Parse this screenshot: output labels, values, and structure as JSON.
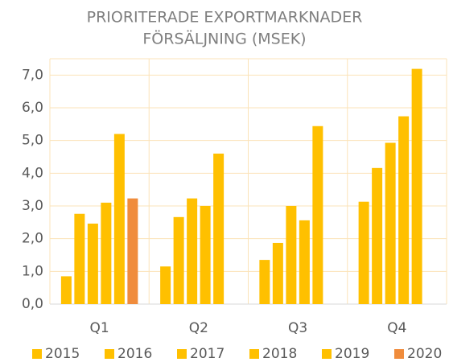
{
  "chart_data": {
    "type": "bar",
    "title": "PRIORITERADE EXPORTMARKNADER",
    "subtitle": "FÖRSÄLJNING (MSEK)",
    "categories": [
      "Q1",
      "Q2",
      "Q3",
      "Q4"
    ],
    "series": [
      {
        "name": "2015",
        "color": "#FFC000",
        "values": [
          0.85,
          1.15,
          1.35,
          3.13
        ]
      },
      {
        "name": "2016",
        "color": "#FFC000",
        "values": [
          2.76,
          2.66,
          1.87,
          4.16
        ]
      },
      {
        "name": "2017",
        "color": "#FFC000",
        "values": [
          2.46,
          3.23,
          3.0,
          4.93
        ]
      },
      {
        "name": "2018",
        "color": "#FFC000",
        "values": [
          3.1,
          3.0,
          2.56,
          5.74
        ]
      },
      {
        "name": "2019",
        "color": "#FFC000",
        "values": [
          5.2,
          4.6,
          5.44,
          7.19
        ]
      },
      {
        "name": "2020",
        "color": "#F08C3C",
        "values": [
          3.23,
          null,
          null,
          null
        ]
      }
    ],
    "ylim": [
      0,
      7.5
    ],
    "yticks": [
      {
        "value": 0,
        "label": "0,0"
      },
      {
        "value": 1,
        "label": "1,0"
      },
      {
        "value": 2,
        "label": "2,0"
      },
      {
        "value": 3,
        "label": "3,0"
      },
      {
        "value": 4,
        "label": "4,0"
      },
      {
        "value": 5,
        "label": "5,0"
      },
      {
        "value": 6,
        "label": "6,0"
      },
      {
        "value": 7,
        "label": "7,0"
      }
    ],
    "grid": true,
    "legend": "bottom"
  }
}
